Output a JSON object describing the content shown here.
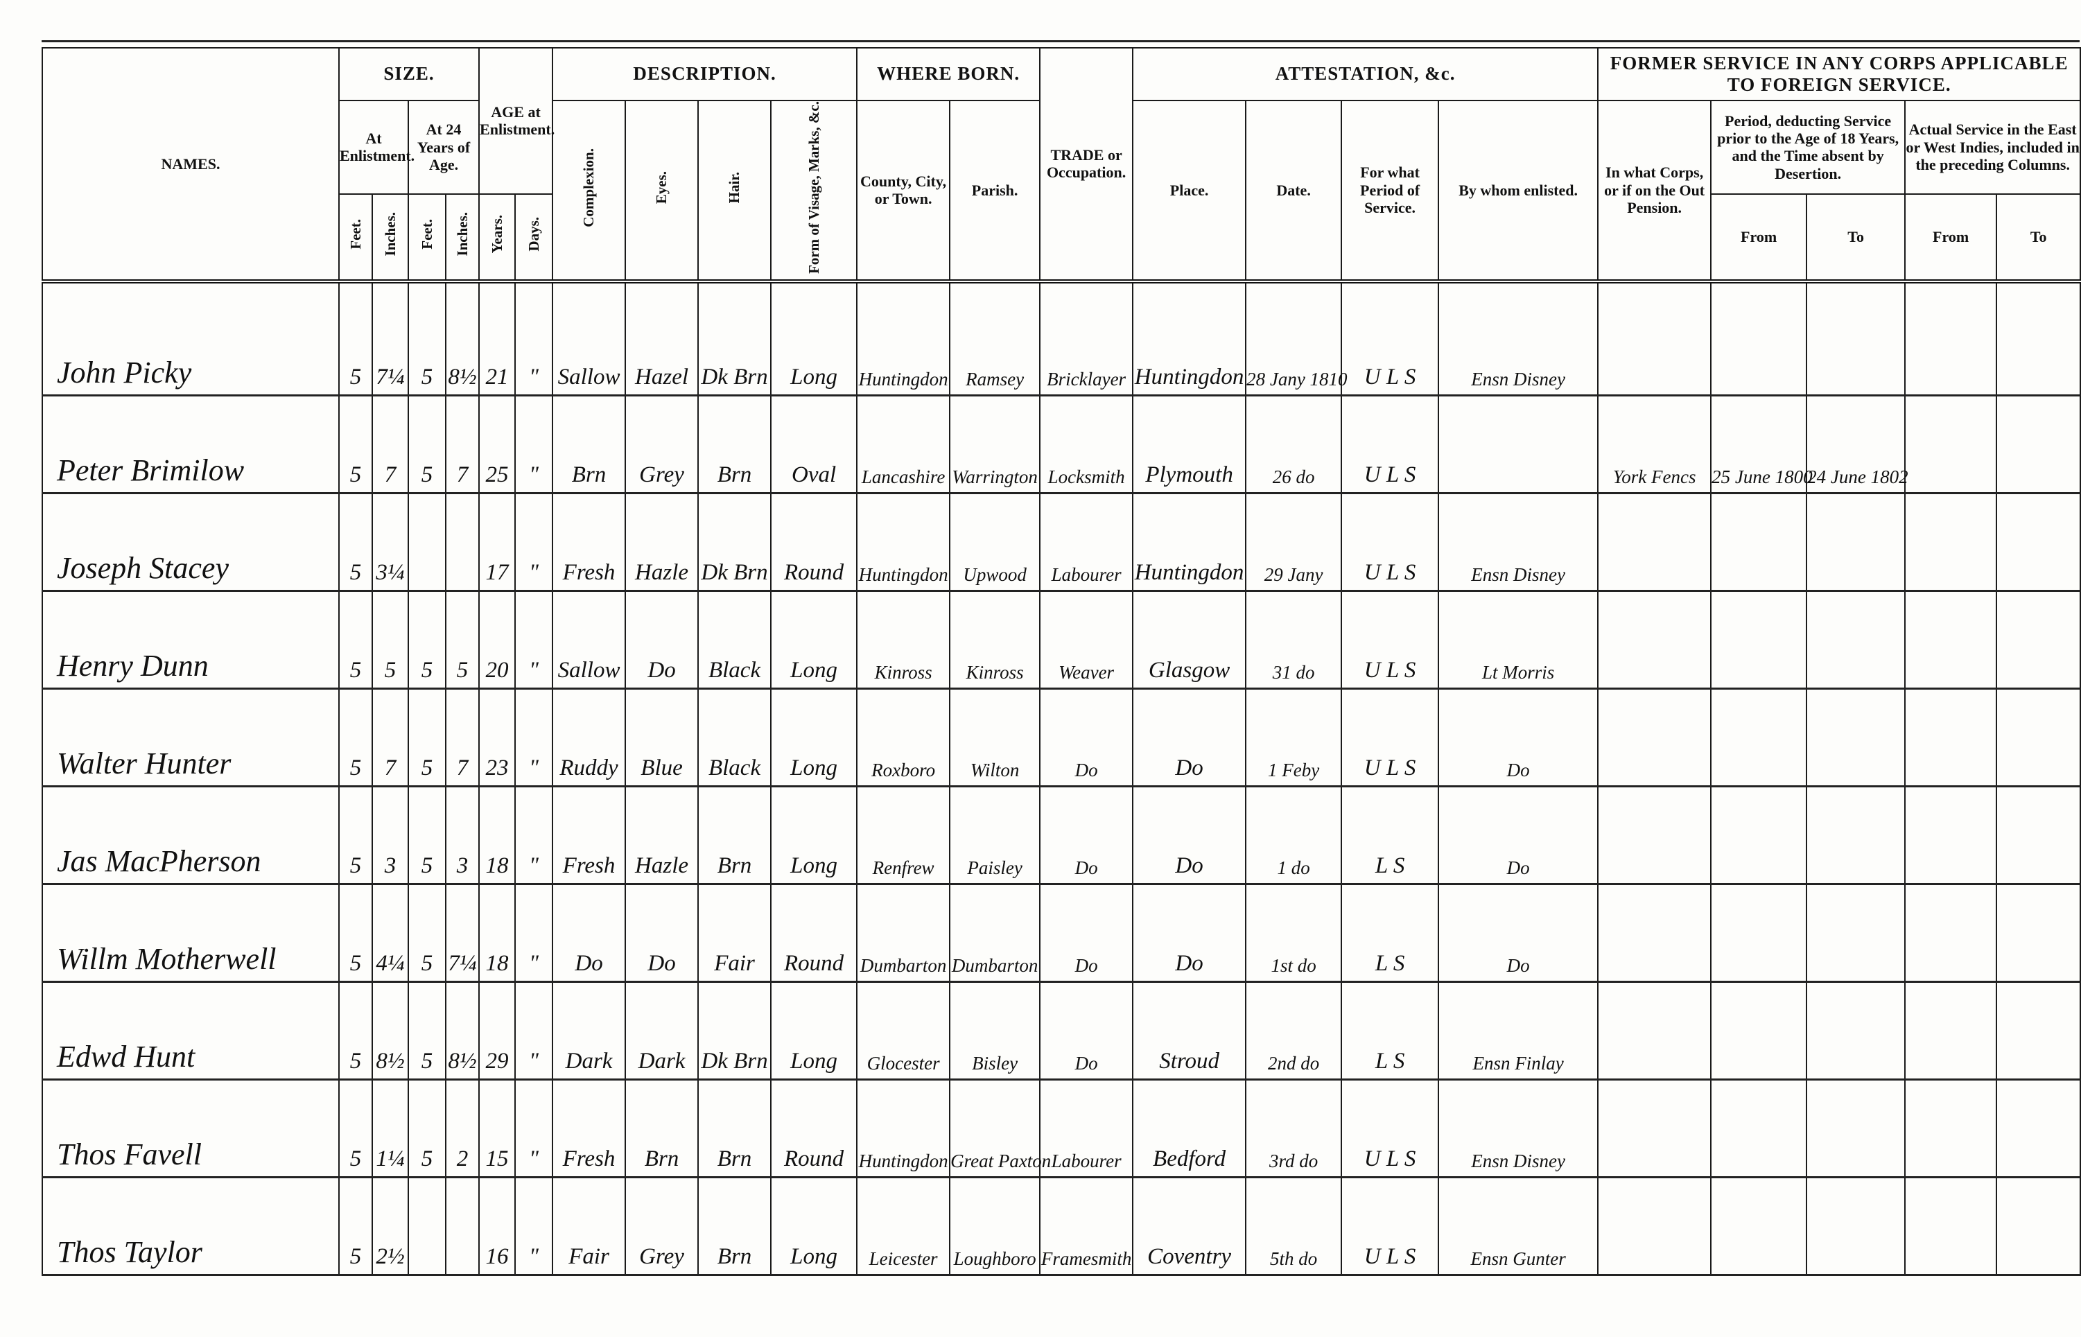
{
  "headers": {
    "names": "NAMES.",
    "size": "SIZE.",
    "at_enlistment": "At Enlistment.",
    "at_24": "At 24 Years of Age.",
    "feet": "Feet.",
    "inches": "Inches.",
    "age": "AGE at Enlistment.",
    "years": "Years.",
    "days": "Days.",
    "description": "DESCRIPTION.",
    "complexion": "Complexion.",
    "eyes": "Eyes.",
    "hair": "Hair.",
    "visage": "Form of Visage, Marks, &c.",
    "where_born": "WHERE BORN.",
    "county": "County, City, or Town.",
    "parish": "Parish.",
    "trade": "TRADE or Occupation.",
    "attestation": "ATTESTATION, &c.",
    "place": "Place.",
    "date": "Date.",
    "period": "For what Period of Service.",
    "by_whom": "By whom enlisted.",
    "former_service": "FORMER SERVICE IN ANY CORPS APPLICABLE TO FOREIGN SERVICE.",
    "in_what_corps": "In what Corps, or if on the Out Pension.",
    "period_deducting": "Period, deducting Service prior to the Age of 18 Years, and the Time absent by Desertion.",
    "actual_service": "Actual Service in the East or West Indies, included in the preceding Columns.",
    "from": "From",
    "to": "To"
  },
  "rows": [
    {
      "name": "John Picky",
      "ft1": "5",
      "in1": "7¼",
      "ft2": "5",
      "in2": "8½",
      "years": "21",
      "days": "\"",
      "complexion": "Sallow",
      "eyes": "Hazel",
      "hair": "Dk Brn",
      "visage": "Long",
      "county": "Huntingdon",
      "parish": "Ramsey",
      "trade": "Bricklayer",
      "place": "Huntingdon",
      "date": "28 Jany 1810",
      "period": "U L S",
      "by_whom": "Ensn Disney",
      "corps": "",
      "p_from": "",
      "p_to": "",
      "a_from": "",
      "a_to": ""
    },
    {
      "name": "Peter Brimilow",
      "ft1": "5",
      "in1": "7",
      "ft2": "5",
      "in2": "7",
      "years": "25",
      "days": "\"",
      "complexion": "Brn",
      "eyes": "Grey",
      "hair": "Brn",
      "visage": "Oval",
      "county": "Lancashire",
      "parish": "Warrington",
      "trade": "Locksmith",
      "place": "Plymouth",
      "date": "26 do",
      "period": "U L S",
      "by_whom": "",
      "corps": "York Fencs",
      "p_from": "25 June 1800",
      "p_to": "24 June 1802",
      "a_from": "",
      "a_to": ""
    },
    {
      "name": "Joseph Stacey",
      "ft1": "5",
      "in1": "3¼",
      "ft2": "",
      "in2": "",
      "years": "17",
      "days": "\"",
      "complexion": "Fresh",
      "eyes": "Hazle",
      "hair": "Dk Brn",
      "visage": "Round",
      "county": "Huntingdon",
      "parish": "Upwood",
      "trade": "Labourer",
      "place": "Huntingdon",
      "date": "29 Jany",
      "period": "U L S",
      "by_whom": "Ensn Disney",
      "corps": "",
      "p_from": "",
      "p_to": "",
      "a_from": "",
      "a_to": ""
    },
    {
      "name": "Henry Dunn",
      "ft1": "5",
      "in1": "5",
      "ft2": "5",
      "in2": "5",
      "years": "20",
      "days": "\"",
      "complexion": "Sallow",
      "eyes": "Do",
      "hair": "Black",
      "visage": "Long",
      "county": "Kinross",
      "parish": "Kinross",
      "trade": "Weaver",
      "place": "Glasgow",
      "date": "31 do",
      "period": "U L S",
      "by_whom": "Lt Morris",
      "corps": "",
      "p_from": "",
      "p_to": "",
      "a_from": "",
      "a_to": ""
    },
    {
      "name": "Walter Hunter",
      "ft1": "5",
      "in1": "7",
      "ft2": "5",
      "in2": "7",
      "years": "23",
      "days": "\"",
      "complexion": "Ruddy",
      "eyes": "Blue",
      "hair": "Black",
      "visage": "Long",
      "county": "Roxboro",
      "parish": "Wilton",
      "trade": "Do",
      "place": "Do",
      "date": "1 Feby",
      "period": "U L S",
      "by_whom": "Do",
      "corps": "",
      "p_from": "",
      "p_to": "",
      "a_from": "",
      "a_to": ""
    },
    {
      "name": "Jas MacPherson",
      "ft1": "5",
      "in1": "3",
      "ft2": "5",
      "in2": "3",
      "years": "18",
      "days": "\"",
      "complexion": "Fresh",
      "eyes": "Hazle",
      "hair": "Brn",
      "visage": "Long",
      "county": "Renfrew",
      "parish": "Paisley",
      "trade": "Do",
      "place": "Do",
      "date": "1 do",
      "period": "L S",
      "by_whom": "Do",
      "corps": "",
      "p_from": "",
      "p_to": "",
      "a_from": "",
      "a_to": ""
    },
    {
      "name": "Willm Motherwell",
      "ft1": "5",
      "in1": "4¼",
      "ft2": "5",
      "in2": "7¼",
      "years": "18",
      "days": "\"",
      "complexion": "Do",
      "eyes": "Do",
      "hair": "Fair",
      "visage": "Round",
      "county": "Dumbarton",
      "parish": "Dumbarton",
      "trade": "Do",
      "place": "Do",
      "date": "1st do",
      "period": "L S",
      "by_whom": "Do",
      "corps": "",
      "p_from": "",
      "p_to": "",
      "a_from": "",
      "a_to": ""
    },
    {
      "name": "Edwd Hunt",
      "ft1": "5",
      "in1": "8½",
      "ft2": "5",
      "in2": "8½",
      "years": "29",
      "days": "\"",
      "complexion": "Dark",
      "eyes": "Dark",
      "hair": "Dk Brn",
      "visage": "Long",
      "county": "Glocester",
      "parish": "Bisley",
      "trade": "Do",
      "place": "Stroud",
      "date": "2nd do",
      "period": "L S",
      "by_whom": "Ensn Finlay",
      "corps": "",
      "p_from": "",
      "p_to": "",
      "a_from": "",
      "a_to": ""
    },
    {
      "name": "Thos Favell",
      "ft1": "5",
      "in1": "1¼",
      "ft2": "5",
      "in2": "2",
      "years": "15",
      "days": "\"",
      "complexion": "Fresh",
      "eyes": "Brn",
      "hair": "Brn",
      "visage": "Round",
      "county": "Huntingdon",
      "parish": "Great Paxton",
      "trade": "Labourer",
      "place": "Bedford",
      "date": "3rd do",
      "period": "U L S",
      "by_whom": "Ensn Disney",
      "corps": "",
      "p_from": "",
      "p_to": "",
      "a_from": "",
      "a_to": ""
    },
    {
      "name": "Thos Taylor",
      "ft1": "5",
      "in1": "2½",
      "ft2": "",
      "in2": "",
      "years": "16",
      "days": "\"",
      "complexion": "Fair",
      "eyes": "Grey",
      "hair": "Brn",
      "visage": "Long",
      "county": "Leicester",
      "parish": "Loughboro",
      "trade": "Framesmith",
      "place": "Coventry",
      "date": "5th do",
      "period": "U L S",
      "by_whom": "Ensn Gunter",
      "corps": "",
      "p_from": "",
      "p_to": "",
      "a_from": "",
      "a_to": ""
    }
  ]
}
